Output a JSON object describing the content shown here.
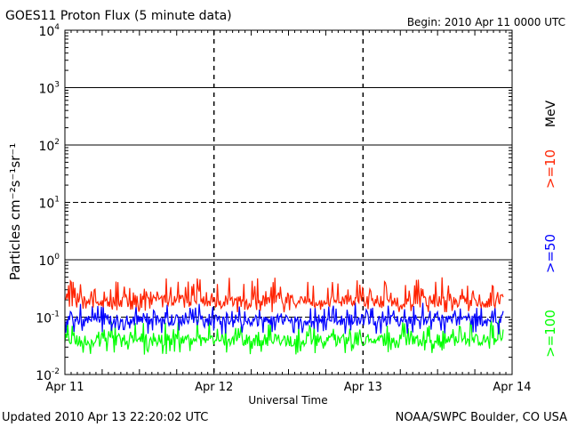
{
  "chart_data": {
    "type": "line",
    "title": "GOES11 Proton Flux (5 minute data)",
    "begin_label": "Begin: 2010 Apr 11 0000 UTC",
    "xlabel": "Universal Time",
    "ylabel": "Particles cm⁻²s⁻¹sr⁻¹",
    "y_scale": "log",
    "ylim": [
      0.01,
      10000
    ],
    "x_ticks": [
      "Apr 11",
      "Apr 12",
      "Apr 13",
      "Apr 14"
    ],
    "y_ticks": [
      {
        "base": "10",
        "exp": "4"
      },
      {
        "base": "10",
        "exp": "3"
      },
      {
        "base": "10",
        "exp": "2"
      },
      {
        "base": "10",
        "exp": "1"
      },
      {
        "base": "10",
        "exp": "0"
      },
      {
        "base": "10",
        "exp": "-1"
      },
      {
        "base": "10",
        "exp": "-2"
      }
    ],
    "unit_label": "MeV",
    "grid": "horizontal lines at each decade (dashed at 10^1 and 10^-1), dashed vertical lines at day boundaries",
    "series": [
      {
        "name": ">=10",
        "color": "#ff2200",
        "typical": 0.19,
        "range": [
          0.12,
          0.5
        ]
      },
      {
        "name": ">=50",
        "color": "#0000ff",
        "typical": 0.09,
        "range": [
          0.05,
          0.18
        ]
      },
      {
        "name": ">=100",
        "color": "#00ff00",
        "typical": 0.04,
        "range": [
          0.022,
          0.09
        ]
      }
    ]
  },
  "footer": {
    "updated": "Updated 2010 Apr 13 22:20:02 UTC",
    "source": "NOAA/SWPC Boulder, CO USA"
  }
}
